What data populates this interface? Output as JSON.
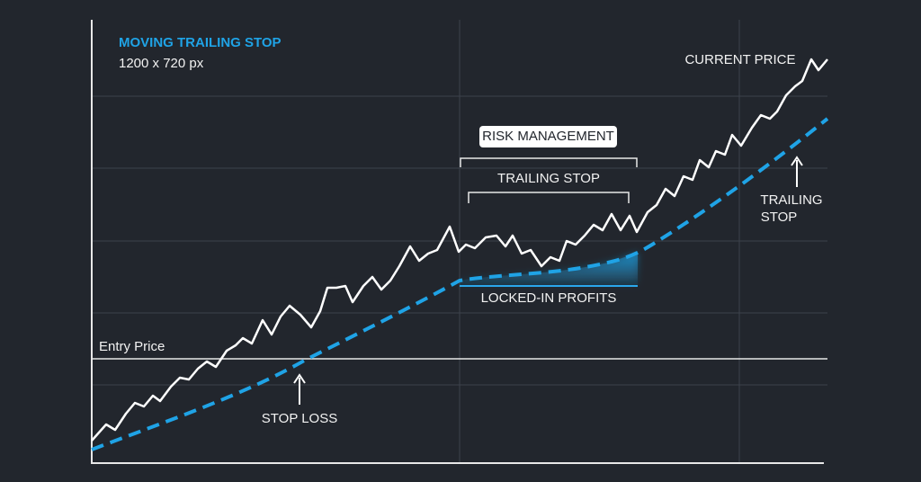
{
  "header": {
    "title": "MOVING TRAILING STOP",
    "subtitle": "1200 x 720 px"
  },
  "labels": {
    "current_price": "CURRENT PRICE",
    "risk_management": "RISK MANAGEMENT",
    "trailing_stop_bracket": "TRAILING STOP",
    "locked_in_profits": "LOCKED-IN PROFITS",
    "entry_price": "Entry Price",
    "stop_loss": "STOP LOSS",
    "trailing_stop_pointer": [
      "TRAILING",
      "STOP"
    ]
  }
}
